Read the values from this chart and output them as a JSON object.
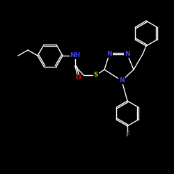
{
  "bg_color": "#000000",
  "bond_color": "#ffffff",
  "atom_colors": {
    "N": "#4040ff",
    "O": "#ff0000",
    "S": "#cccc00",
    "F": "#44bb44",
    "NH": "#4040ff"
  },
  "figsize": [
    2.5,
    2.5
  ],
  "dpi": 100,
  "bond_lw": 1.0
}
